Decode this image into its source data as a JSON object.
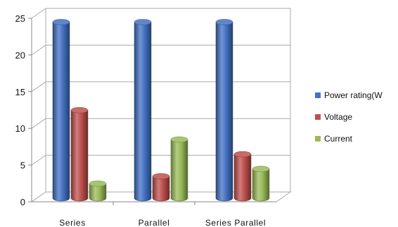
{
  "chart_data": {
    "type": "bar",
    "style": "3d-cylinder",
    "categories": [
      "Series",
      "Parallel",
      "Series Parallel"
    ],
    "series": [
      {
        "name": "Power rating(W",
        "values": [
          24,
          24,
          24
        ],
        "color": "#4472c4"
      },
      {
        "name": "Voltage",
        "values": [
          12,
          3,
          6
        ],
        "color": "#c0504d"
      },
      {
        "name": "Current",
        "values": [
          2,
          8,
          4
        ],
        "color": "#9bbb59"
      }
    ],
    "ylim": [
      0,
      25
    ],
    "yticks": [
      "0",
      "5",
      "10",
      "15",
      "20",
      "25"
    ],
    "xlabel": "",
    "ylabel": "",
    "title": "",
    "grid": true,
    "legend_position": "right"
  }
}
